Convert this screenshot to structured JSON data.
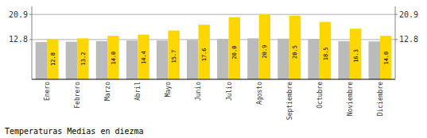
{
  "chart_data": {
    "type": "bar",
    "title": "Temperaturas Medias en diezma",
    "categories": [
      "Enero",
      "Febrero",
      "Marzo",
      "Abril",
      "Mayo",
      "Junio",
      "Julio",
      "Agosto",
      "Septiembre",
      "Octubre",
      "Noviembre",
      "Diciembre"
    ],
    "series": [
      {
        "color": "#BBBBBB",
        "values": [
          12.0,
          12.1,
          12.3,
          12.5,
          12.5,
          12.7,
          13.0,
          13.2,
          13.1,
          13.0,
          12.3,
          12.2
        ]
      },
      {
        "color": "#FFD700",
        "data_labels": true,
        "values": [
          12.8,
          13.2,
          14.0,
          14.4,
          15.7,
          17.6,
          20.0,
          20.9,
          20.5,
          18.5,
          16.3,
          14.0
        ]
      }
    ],
    "ylim": [
      0.0,
      23.5
    ],
    "yticks": [
      12.8,
      20.9
    ],
    "y2lim": [
      0.0,
      23.5
    ],
    "y2ticks": [
      12.8,
      20.9
    ],
    "grid": true
  }
}
